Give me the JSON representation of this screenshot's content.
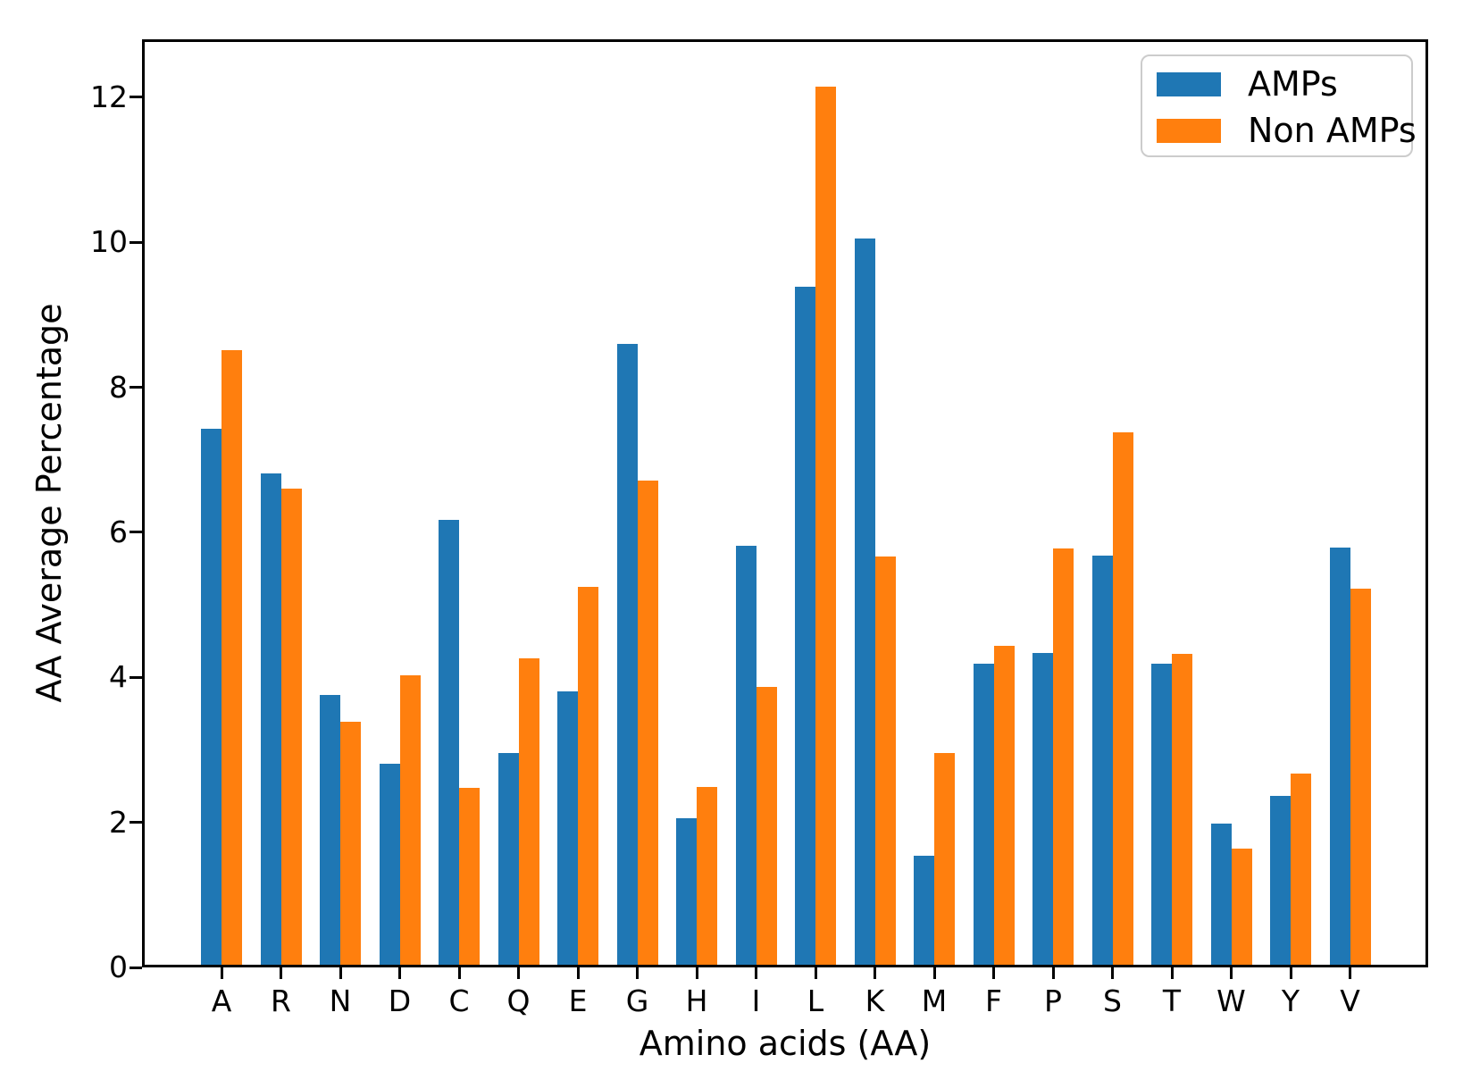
{
  "chart_data": {
    "type": "bar",
    "title": "",
    "xlabel": "Amino acids (AA)",
    "ylabel": "AA Average Percentage",
    "categories": [
      "A",
      "R",
      "N",
      "D",
      "C",
      "Q",
      "E",
      "G",
      "H",
      "I",
      "L",
      "K",
      "M",
      "F",
      "P",
      "S",
      "T",
      "W",
      "Y",
      "V"
    ],
    "series": [
      {
        "name": "AMPs",
        "color": "#1f77b4",
        "values": [
          7.44,
          6.81,
          3.74,
          2.79,
          6.17,
          2.94,
          3.79,
          8.61,
          2.03,
          5.81,
          9.4,
          10.07,
          1.51,
          4.18,
          4.33,
          5.68,
          4.18,
          1.96,
          2.34,
          5.79
        ]
      },
      {
        "name": "Non AMPs",
        "color": "#ff7f0e",
        "values": [
          8.52,
          6.6,
          3.37,
          4.01,
          2.45,
          4.25,
          5.24,
          6.72,
          2.46,
          3.85,
          12.18,
          5.66,
          2.94,
          4.42,
          5.78,
          7.39,
          4.31,
          1.61,
          2.65,
          5.22
        ]
      }
    ],
    "yticks": [
      0,
      2,
      4,
      6,
      8,
      10,
      12
    ],
    "ylim": [
      0,
      12.8
    ],
    "grid": false,
    "legend_position": "upper right",
    "background_color": "#ffffff",
    "axis_color": "#000000"
  }
}
